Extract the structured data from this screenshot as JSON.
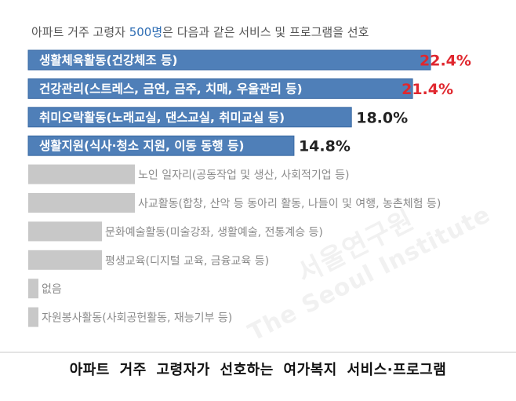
{
  "caption": "아파트 거주 고령자가 선호하는 여가복지 서비스·프로그램",
  "watermark": {
    "line1": "서울연구원",
    "line2": "The Seoul Institute"
  },
  "colors": {
    "highlight_bar": "#4f7fb8",
    "muted_bar": "#c8c8c8",
    "highlight_label": "#ffffff",
    "muted_label": "#8a8a8a",
    "value_red": "#e0272e",
    "value_dark": "#222222",
    "title_text": "#555555",
    "title_accent": "#2e6db4"
  },
  "chart_data": {
    "type": "bar",
    "orientation": "horizontal",
    "title_parts": [
      {
        "text": "아파트 거주 고령자 ",
        "accent": false
      },
      {
        "text": "500명",
        "accent": true
      },
      {
        "text": "은 다음과 같은 서비스 및 프로그램을 선호",
        "accent": false
      }
    ],
    "categories": [
      "생활체육활동(건강체조 등)",
      "건강관리(스트레스, 금연, 금주, 치매, 우울관리 등)",
      "취미오락활동(노래교실, 댄스교실, 취미교실 등)",
      "생활지원(식사·청소 지원, 이동 동행 등)",
      "노인 일자리(공동작업 및 생산, 사회적기업 등)",
      "사교활동(합창, 산악 등 동아리 활동, 나들이 및 여행, 농촌체험 등)",
      "문화예술활동(미술강좌, 생활예술, 전통계승 등)",
      "평생교육(디지털 교육, 금융교육 등)",
      "없음",
      "자원봉사활동(사회공헌활동, 재능기부 등)"
    ],
    "values": [
      22.4,
      21.4,
      18.0,
      14.8,
      7.6,
      7.3,
      5.7,
      5.2,
      1.7,
      1.6
    ],
    "data_labels": [
      "22.4%",
      "21.4%",
      "18.0%",
      "14.8%",
      "",
      "",
      "",
      "",
      "",
      ""
    ],
    "highlighted": [
      true,
      true,
      true,
      true,
      false,
      false,
      false,
      false,
      false,
      false
    ],
    "value_colors": [
      "red",
      "red",
      "dark",
      "dark",
      "",
      "",
      "",
      "",
      "",
      ""
    ],
    "xlim": [
      0,
      22.4
    ],
    "unit": "%"
  }
}
